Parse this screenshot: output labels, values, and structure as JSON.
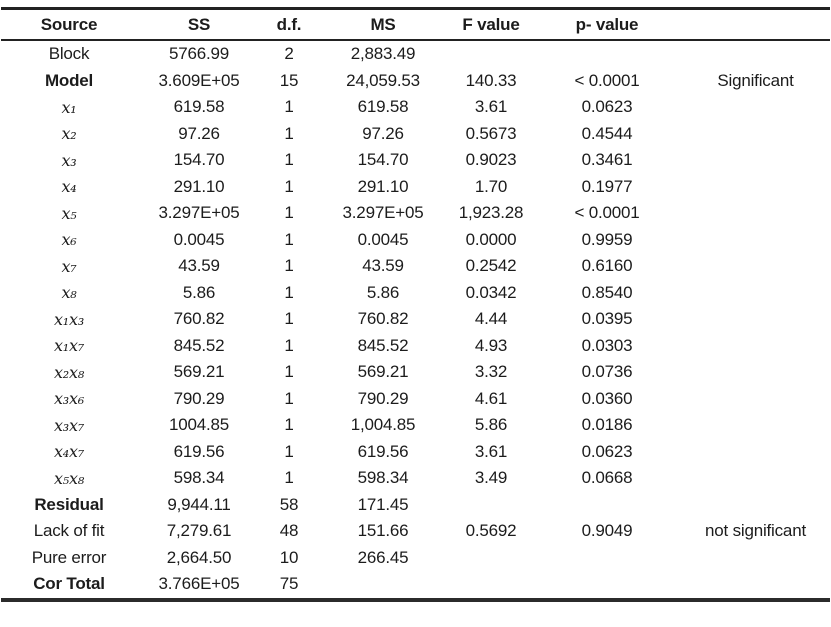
{
  "table": {
    "columns": [
      "Source",
      "SS",
      "d.f.",
      "MS",
      "F value",
      "p- value",
      ""
    ],
    "rows": [
      {
        "source": "Block",
        "bold": false,
        "math": false,
        "ss": "5766.99",
        "df": "2",
        "ms": "2,883.49",
        "f": "",
        "p": "",
        "sig": ""
      },
      {
        "source": "Model",
        "bold": true,
        "math": false,
        "ss": "3.609E+05",
        "df": "15",
        "ms": "24,059.53",
        "f": "140.33",
        "p": "< 0.0001",
        "sig": "Significant"
      },
      {
        "source": "x₁",
        "bold": false,
        "math": true,
        "ss": "619.58",
        "df": "1",
        "ms": "619.58",
        "f": "3.61",
        "p": "0.0623",
        "sig": ""
      },
      {
        "source": "x₂",
        "bold": false,
        "math": true,
        "ss": "97.26",
        "df": "1",
        "ms": "97.26",
        "f": "0.5673",
        "p": "0.4544",
        "sig": ""
      },
      {
        "source": "x₃",
        "bold": false,
        "math": true,
        "ss": "154.70",
        "df": "1",
        "ms": "154.70",
        "f": "0.9023",
        "p": "0.3461",
        "sig": ""
      },
      {
        "source": "x₄",
        "bold": false,
        "math": true,
        "ss": "291.10",
        "df": "1",
        "ms": "291.10",
        "f": "1.70",
        "p": "0.1977",
        "sig": ""
      },
      {
        "source": "x₅",
        "bold": false,
        "math": true,
        "ss": "3.297E+05",
        "df": "1",
        "ms": "3.297E+05",
        "f": "1,923.28",
        "p": "< 0.0001",
        "sig": ""
      },
      {
        "source": "x₆",
        "bold": false,
        "math": true,
        "ss": "0.0045",
        "df": "1",
        "ms": "0.0045",
        "f": "0.0000",
        "p": "0.9959",
        "sig": ""
      },
      {
        "source": "x₇",
        "bold": false,
        "math": true,
        "ss": "43.59",
        "df": "1",
        "ms": "43.59",
        "f": "0.2542",
        "p": "0.6160",
        "sig": ""
      },
      {
        "source": "x₈",
        "bold": false,
        "math": true,
        "ss": "5.86",
        "df": "1",
        "ms": "5.86",
        "f": "0.0342",
        "p": "0.8540",
        "sig": ""
      },
      {
        "source": "x₁x₃",
        "bold": false,
        "math": true,
        "ss": "760.82",
        "df": "1",
        "ms": "760.82",
        "f": "4.44",
        "p": "0.0395",
        "sig": ""
      },
      {
        "source": "x₁x₇",
        "bold": false,
        "math": true,
        "ss": "845.52",
        "df": "1",
        "ms": "845.52",
        "f": "4.93",
        "p": "0.0303",
        "sig": ""
      },
      {
        "source": "x₂x₈",
        "bold": false,
        "math": true,
        "ss": "569.21",
        "df": "1",
        "ms": "569.21",
        "f": "3.32",
        "p": "0.0736",
        "sig": ""
      },
      {
        "source": "x₃x₆",
        "bold": false,
        "math": true,
        "ss": "790.29",
        "df": "1",
        "ms": "790.29",
        "f": "4.61",
        "p": "0.0360",
        "sig": ""
      },
      {
        "source": "x₃x₇",
        "bold": false,
        "math": true,
        "ss": "1004.85",
        "df": "1",
        "ms": "1,004.85",
        "f": "5.86",
        "p": "0.0186",
        "sig": ""
      },
      {
        "source": "x₄x₇",
        "bold": false,
        "math": true,
        "ss": "619.56",
        "df": "1",
        "ms": "619.56",
        "f": "3.61",
        "p": "0.0623",
        "sig": ""
      },
      {
        "source": "x₅x₈",
        "bold": false,
        "math": true,
        "ss": "598.34",
        "df": "1",
        "ms": "598.34",
        "f": "3.49",
        "p": "0.0668",
        "sig": ""
      },
      {
        "source": "Residual",
        "bold": true,
        "math": false,
        "ss": "9,944.11",
        "df": "58",
        "ms": "171.45",
        "f": "",
        "p": "",
        "sig": ""
      },
      {
        "source": "Lack of fit",
        "bold": false,
        "math": false,
        "ss": "7,279.61",
        "df": "48",
        "ms": "151.66",
        "f": "0.5692",
        "p": "0.9049",
        "sig": "not significant"
      },
      {
        "source": "Pure error",
        "bold": false,
        "math": false,
        "ss": "2,664.50",
        "df": "10",
        "ms": "266.45",
        "f": "",
        "p": "",
        "sig": ""
      },
      {
        "source": "Cor Total",
        "bold": true,
        "math": false,
        "ss": "3.766E+05",
        "df": "75",
        "ms": "",
        "f": "",
        "p": "",
        "sig": ""
      }
    ]
  },
  "chart_data": {
    "type": "table",
    "title": "ANOVA table",
    "columns": [
      "Source",
      "SS",
      "d.f.",
      "MS",
      "F value",
      "p- value",
      ""
    ],
    "rows": [
      [
        "Block",
        "5766.99",
        "2",
        "2,883.49",
        "",
        "",
        ""
      ],
      [
        "Model",
        "3.609E+05",
        "15",
        "24,059.53",
        "140.33",
        "< 0.0001",
        "Significant"
      ],
      [
        "x1",
        "619.58",
        "1",
        "619.58",
        "3.61",
        "0.0623",
        ""
      ],
      [
        "x2",
        "97.26",
        "1",
        "97.26",
        "0.5673",
        "0.4544",
        ""
      ],
      [
        "x3",
        "154.70",
        "1",
        "154.70",
        "0.9023",
        "0.3461",
        ""
      ],
      [
        "x4",
        "291.10",
        "1",
        "291.10",
        "1.70",
        "0.1977",
        ""
      ],
      [
        "x5",
        "3.297E+05",
        "1",
        "3.297E+05",
        "1,923.28",
        "< 0.0001",
        ""
      ],
      [
        "x6",
        "0.0045",
        "1",
        "0.0045",
        "0.0000",
        "0.9959",
        ""
      ],
      [
        "x7",
        "43.59",
        "1",
        "43.59",
        "0.2542",
        "0.6160",
        ""
      ],
      [
        "x8",
        "5.86",
        "1",
        "5.86",
        "0.0342",
        "0.8540",
        ""
      ],
      [
        "x1x3",
        "760.82",
        "1",
        "760.82",
        "4.44",
        "0.0395",
        ""
      ],
      [
        "x1x7",
        "845.52",
        "1",
        "845.52",
        "4.93",
        "0.0303",
        ""
      ],
      [
        "x2x8",
        "569.21",
        "1",
        "569.21",
        "3.32",
        "0.0736",
        ""
      ],
      [
        "x3x6",
        "790.29",
        "1",
        "790.29",
        "4.61",
        "0.0360",
        ""
      ],
      [
        "x3x7",
        "1004.85",
        "1",
        "1,004.85",
        "5.86",
        "0.0186",
        ""
      ],
      [
        "x4x7",
        "619.56",
        "1",
        "619.56",
        "3.61",
        "0.0623",
        ""
      ],
      [
        "x5x8",
        "598.34",
        "1",
        "598.34",
        "3.49",
        "0.0668",
        ""
      ],
      [
        "Residual",
        "9,944.11",
        "58",
        "171.45",
        "",
        "",
        ""
      ],
      [
        "Lack of fit",
        "7,279.61",
        "48",
        "151.66",
        "0.5692",
        "0.9049",
        "not significant"
      ],
      [
        "Pure error",
        "2,664.50",
        "10",
        "266.45",
        "",
        "",
        ""
      ],
      [
        "Cor Total",
        "3.766E+05",
        "75",
        "",
        "",
        "",
        ""
      ]
    ]
  },
  "colors": {
    "text": "#1c1c1c",
    "rule": "#222222",
    "background": "#ffffff"
  }
}
